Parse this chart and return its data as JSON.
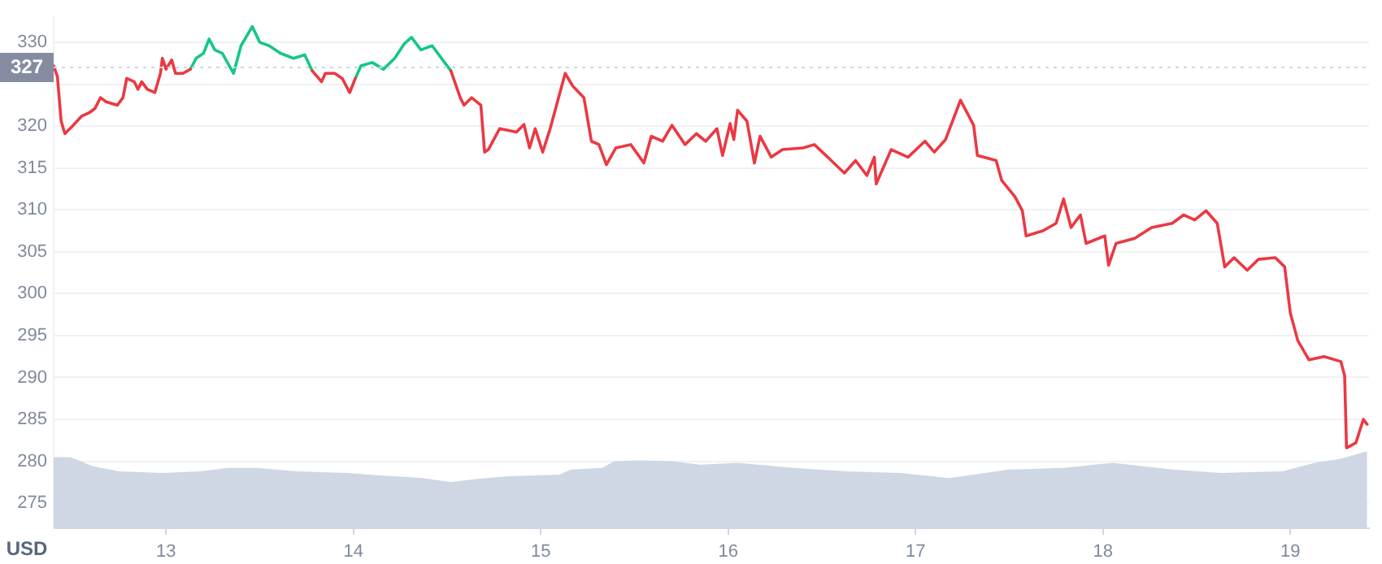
{
  "chart_data": {
    "type": "line",
    "ylabel": "USD",
    "xlim": [
      12.4,
      19.42
    ],
    "xticks": [
      13,
      14,
      15,
      16,
      17,
      18,
      19
    ],
    "ylim": [
      272,
      333
    ],
    "yticks": [
      275,
      280,
      285,
      290,
      295,
      300,
      305,
      310,
      315,
      320,
      {
        "value": 325,
        "label": null
      },
      330
    ],
    "grid": "y",
    "legend": false,
    "marker": "none",
    "line_style": "solid",
    "ref_lines": [
      {
        "axis": "y",
        "value": 327,
        "label": "327",
        "color": "#cfd6e4",
        "line_style": "dotted"
      }
    ],
    "series": [
      {
        "type": "area",
        "color": "#cfd6e4",
        "x": [
          12.4,
          12.49,
          12.61,
          12.75,
          12.98,
          13.18,
          13.33,
          13.48,
          13.7,
          13.97,
          14.14,
          14.37,
          14.52,
          14.66,
          14.83,
          15.1,
          15.16,
          15.33,
          15.39,
          15.53,
          15.7,
          15.85,
          16.05,
          16.35,
          16.63,
          16.92,
          17.18,
          17.5,
          17.79,
          18.05,
          18.37,
          18.63,
          18.96,
          19.13,
          19.27,
          19.41
        ],
        "values": [
          280.5,
          280.5,
          279.4,
          278.8,
          278.6,
          278.8,
          279.2,
          279.2,
          278.8,
          278.6,
          278.3,
          278.0,
          277.5,
          277.9,
          278.2,
          278.4,
          279.0,
          279.2,
          280.0,
          280.1,
          280.0,
          279.6,
          279.8,
          279.2,
          278.8,
          278.6,
          278.0,
          279.0,
          279.2,
          279.8,
          279.0,
          278.6,
          278.8,
          279.8,
          280.3,
          281.2
        ]
      },
      {
        "color": "#ea3943",
        "x": [
          12.4,
          12.42,
          12.44,
          12.46,
          12.5,
          12.55,
          12.59,
          12.62,
          12.65,
          12.68,
          12.74,
          12.77,
          12.79,
          12.83,
          12.85,
          12.87,
          12.9,
          12.94,
          12.97,
          12.98,
          13.0,
          13.03,
          13.05,
          13.09,
          13.13,
          13.16,
          13.2,
          13.23,
          13.26,
          13.3,
          13.36,
          13.4,
          13.46,
          13.5,
          13.55,
          13.61,
          13.68,
          13.74,
          13.78,
          13.83,
          13.85,
          13.9,
          13.94,
          13.98,
          14.01,
          14.04,
          14.1,
          14.16,
          14.22,
          14.27,
          14.31,
          14.36,
          14.42,
          14.48,
          14.52,
          14.57,
          14.59,
          14.63,
          14.68,
          14.7,
          14.72,
          14.78,
          14.87,
          14.91,
          14.94,
          14.97,
          15.01,
          15.05,
          15.13,
          15.17,
          15.23,
          15.27,
          15.31,
          15.35,
          15.4,
          15.48,
          15.55,
          15.59,
          15.65,
          15.7,
          15.77,
          15.83,
          15.88,
          15.94,
          15.97,
          16.01,
          16.03,
          16.05,
          16.1,
          16.14,
          16.17,
          16.23,
          16.29,
          16.4,
          16.46,
          16.55,
          16.62,
          16.68,
          16.74,
          16.78,
          16.79,
          16.87,
          16.96,
          17.05,
          17.1,
          17.16,
          17.24,
          17.31,
          17.33,
          17.43,
          17.46,
          17.53,
          17.57,
          17.59,
          17.68,
          17.75,
          17.79,
          17.83,
          17.88,
          17.91,
          18.01,
          18.03,
          18.07,
          18.17,
          18.26,
          18.37,
          18.43,
          18.49,
          18.55,
          18.61,
          18.65,
          18.7,
          18.77,
          18.83,
          18.92,
          18.97,
          19.0,
          19.04,
          19.1,
          19.18,
          19.27,
          19.29,
          19.3,
          19.35,
          19.39,
          19.41
        ],
        "values": [
          327.2,
          325.9,
          320.6,
          319.1,
          320.0,
          321.2,
          321.6,
          322.1,
          323.4,
          322.9,
          322.5,
          323.4,
          325.7,
          325.3,
          324.4,
          325.3,
          324.4,
          324.0,
          326.3,
          328.1,
          326.8,
          327.9,
          326.3,
          326.3,
          326.8,
          null,
          null,
          null,
          null,
          null,
          null,
          null,
          null,
          null,
          null,
          null,
          null,
          null,
          326.6,
          325.3,
          326.3,
          326.3,
          325.7,
          324.0,
          325.7,
          null,
          null,
          null,
          null,
          null,
          null,
          null,
          null,
          null,
          326.6,
          323.4,
          322.5,
          323.4,
          322.5,
          316.9,
          317.2,
          319.7,
          319.3,
          320.2,
          317.4,
          319.7,
          316.9,
          319.7,
          326.3,
          324.8,
          323.4,
          318.2,
          317.8,
          315.4,
          317.4,
          317.8,
          315.6,
          318.8,
          318.2,
          320.1,
          317.8,
          319.1,
          318.2,
          319.7,
          316.5,
          320.3,
          318.4,
          321.9,
          320.6,
          315.6,
          318.8,
          316.3,
          317.2,
          317.4,
          317.8,
          315.9,
          314.4,
          315.9,
          314.1,
          316.3,
          313.1,
          317.2,
          316.3,
          318.2,
          316.9,
          318.4,
          323.1,
          320.1,
          316.5,
          315.9,
          313.5,
          311.6,
          309.9,
          306.9,
          307.5,
          308.4,
          311.3,
          307.9,
          309.4,
          306.0,
          306.9,
          303.4,
          306.0,
          306.6,
          307.9,
          308.4,
          309.4,
          308.8,
          309.9,
          308.4,
          303.2,
          304.3,
          302.8,
          304.1,
          304.3,
          303.2,
          297.7,
          294.4,
          292.1,
          292.5,
          291.9,
          290.2,
          281.6,
          282.2,
          285.0,
          284.4
        ]
      },
      {
        "color": "#16c784",
        "x": [
          13.13,
          13.16,
          13.2,
          13.23,
          13.26,
          13.3,
          13.36,
          13.4,
          13.46,
          13.5,
          13.55,
          13.61,
          13.68,
          13.74,
          13.78
        ],
        "values": [
          326.8,
          328.1,
          328.7,
          330.4,
          329.1,
          328.7,
          326.3,
          329.6,
          331.9,
          330.0,
          329.6,
          328.7,
          328.1,
          328.5,
          326.6
        ]
      },
      {
        "color": "#16c784",
        "x": [
          14.01,
          14.04,
          14.1,
          14.16,
          14.22,
          14.27,
          14.31,
          14.36,
          14.42,
          14.48,
          14.52
        ],
        "values": [
          325.7,
          327.2,
          327.6,
          326.8,
          328.1,
          329.8,
          330.6,
          329.1,
          329.6,
          327.8,
          326.6
        ]
      }
    ]
  }
}
